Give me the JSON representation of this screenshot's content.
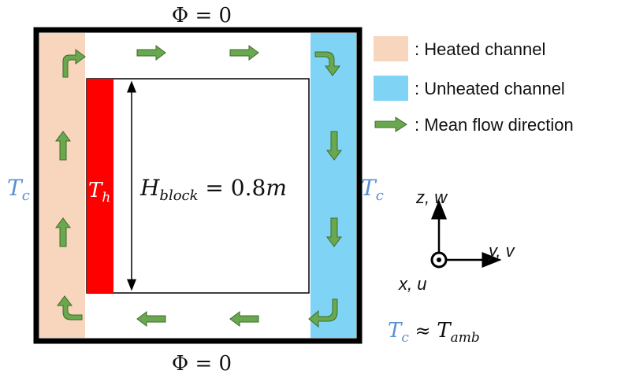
{
  "colors": {
    "heated": "#f8d5bd",
    "unheated": "#7fd4f6",
    "hot_wall": "#ff0000",
    "flow_arrow": "#6aa84f",
    "cold_text": "#5b8fd1",
    "border": "#000000"
  },
  "boundary": {
    "top_label": "Φ = 0",
    "bottom_label": "Φ = 0"
  },
  "walls": {
    "left_temp": "T",
    "left_temp_sub": "c",
    "right_temp": "T",
    "right_temp_sub": "c",
    "hot_temp": "T",
    "hot_temp_sub": "h"
  },
  "block": {
    "height_var": "H",
    "height_sub": "block",
    "height_value": " = 0.8",
    "height_unit": "m"
  },
  "legend": {
    "items": [
      {
        "label": ": Heated channel",
        "icon": "heated-swatch-icon"
      },
      {
        "label": ": Unheated channel",
        "icon": "unheated-swatch-icon"
      },
      {
        "label": ": Mean flow direction",
        "icon": "flow-arrow-icon"
      }
    ]
  },
  "axes": {
    "vertical": "z, w",
    "horizontal": "y, v",
    "normal": "x, u"
  },
  "ambient": {
    "lhs": "T",
    "lhs_sub": "c",
    "approx": " ≈ ",
    "rhs": "T",
    "rhs_sub": "amb"
  }
}
